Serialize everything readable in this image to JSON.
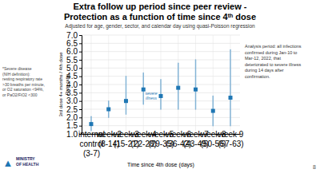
{
  "chart_data": {
    "type": "errorbar",
    "title": "Extra follow up period since peer review -",
    "title_line2": [
      "Protection as a function of time since 4",
      "th",
      " dose"
    ],
    "subtitle": "Adjusted for age, gender, sector, and calendar day using quasi-Poisson regression",
    "x_label": "Time since 4th dose (days)",
    "y_label": "3rd dose 4+ months / 4th dose\nRate ratio",
    "categories": [
      "internal\ncontrol\n(3-7)",
      "week 2\n(8-14)",
      "week 3\n(15-21)",
      "week 4\n(22-28)",
      "week 5\n(29-35)",
      "week 6\n(36-42)",
      "week 7\n(43-49)",
      "week 8\n(50-56)",
      "week 9\n(57-63)"
    ],
    "values": [
      1.6,
      2.5,
      3.0,
      3.7,
      3.3,
      3.8,
      3.7,
      2.4,
      3.2
    ],
    "ci_low": [
      1.2,
      2.0,
      2.2,
      2.8,
      2.5,
      2.5,
      2.5,
      1.5,
      1.5
    ],
    "ci_high": [
      2.05,
      3.0,
      4.5,
      4.7,
      4.3,
      5.3,
      5.5,
      3.3,
      6.1
    ],
    "ylim": [
      1.0,
      7.0
    ],
    "yticks": [
      {
        "value": 1.0,
        "label": "1.0"
      },
      1.5,
      {
        "value": 2.0,
        "label": "2.0"
      },
      2.5,
      {
        "value": 3.0,
        "label": "3.0"
      },
      3.5,
      {
        "value": 4.0,
        "label": "4.0"
      },
      4.5,
      {
        "value": 5.0,
        "label": "5.0"
      },
      5.5,
      {
        "value": 6.0,
        "label": "6.0"
      },
      6.5,
      {
        "value": 7.0,
        "label": "7.0"
      }
    ],
    "grid": true,
    "marker": "square",
    "annotations": [
      {
        "text": "severe\nillness",
        "x": 4,
        "y": 3.3
      }
    ],
    "analysis_note": "Analysis period: all infections\nconfirmed during Jan-10 to\nMar-12, 2022, that\ndeteriorated to severe  illness\nduring 14 days after\nconfirmation.",
    "severe_disease_note": "*Severe disease\n(NIH definition):\nresting respiratory rate\n>30 breaths per minute,\nor O2 saturation <94%,\nor PaO2/FiO2  <300",
    "logo_symbol": "▲",
    "logo": "MINISTRY\nOF HEALTH",
    "page_number": "8"
  }
}
